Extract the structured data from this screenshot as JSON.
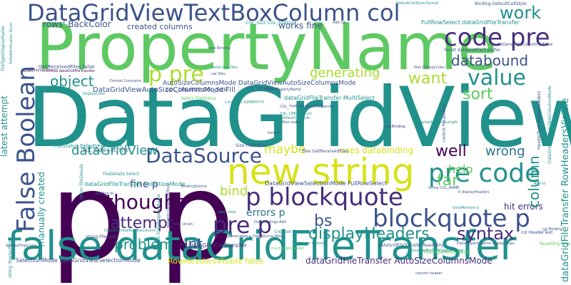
{
  "palette": {
    "purple": "#440154",
    "violet": "#472d7b",
    "indigo": "#3b528b",
    "blue": "#2c728e",
    "teal": "#21918c",
    "sea": "#28ae80",
    "green": "#5ec962",
    "lime": "#addc30",
    "yellow": "#d7e219"
  },
  "words": [
    {
      "text": "DataGridView",
      "color": "teal"
    },
    {
      "text": "PropertyName",
      "color": "green"
    },
    {
      "text": "p p",
      "color": "purple"
    },
    {
      "text": "false dataGridFileTransfer",
      "color": "teal"
    },
    {
      "text": "DataGridViewTextBoxColumn col",
      "color": "indigo"
    },
    {
      "text": "new string",
      "color": "yellow"
    },
    {
      "text": "p blockquote",
      "color": "violet"
    },
    {
      "text": "blockquote p",
      "color": "indigo"
    },
    {
      "text": "pre code",
      "color": "teal"
    },
    {
      "text": "code pre",
      "color": "violet"
    },
    {
      "text": "False Boolean",
      "color": "indigo"
    },
    {
      "text": "pre p",
      "color": "violet"
    },
    {
      "text": "p pre",
      "color": "lime"
    },
    {
      "text": "DataSource",
      "color": "indigo"
    },
    {
      "text": "thought",
      "color": "purple"
    },
    {
      "text": "attempt",
      "color": "violet"
    },
    {
      "text": "value",
      "color": "teal"
    },
    {
      "text": "databound",
      "color": "indigo"
    },
    {
      "text": "work",
      "color": "teal"
    },
    {
      "text": "want",
      "color": "lime"
    },
    {
      "text": "displayHeaders",
      "color": "teal"
    },
    {
      "text": "generating",
      "color": "lime"
    },
    {
      "text": "syntax",
      "color": "violet"
    },
    {
      "text": "well",
      "color": "purple"
    },
    {
      "text": "problem",
      "color": "teal"
    },
    {
      "text": "bs",
      "color": "indigo"
    },
    {
      "text": "object",
      "color": "teal"
    },
    {
      "text": "sort",
      "color": "green"
    },
    {
      "text": "column",
      "color": "teal"
    },
    {
      "text": "wrong",
      "color": "blue"
    },
    {
      "text": "far",
      "color": "green"
    },
    {
      "text": "maybe",
      "color": "yellow"
    },
    {
      "text": "int",
      "color": "indigo"
    },
    {
      "text": "bind",
      "color": "lime"
    },
    {
      "text": "help",
      "color": "green"
    },
    {
      "text": "errors p",
      "color": "blue"
    },
    {
      "text": "hit errors",
      "color": "violet"
    },
    {
      "text": "fine p",
      "color": "indigo"
    },
    {
      "text": "latest attempt",
      "color": "teal"
    },
    {
      "text": "manually created",
      "color": "teal"
    },
    {
      "text": "rows' BackColor",
      "color": "indigo"
    },
    {
      "text": "created columns",
      "color": "indigo"
    },
    {
      "text": "works fine",
      "color": "indigo"
    },
    {
      "text": "uses databinding",
      "color": "yellow"
    },
    {
      "text": "dataGridFileTransfer RowHeadersVisible",
      "color": "teal"
    },
    {
      "text": "dataGridFileTransfer AutoSizeColumnsMode",
      "color": "violet"
    },
    {
      "text": "RowHeadersVisible false",
      "color": "yellow"
    },
    {
      "text": "DataGridViewAutoSizeColumnsMode Fill",
      "color": "indigo"
    },
    {
      "text": "AutoSizeColumnsMode DataGridViewAutoSizeColumnsMode",
      "color": "indigo"
    },
    {
      "text": "DataGridViewSelectionMode FullRowSelect",
      "color": "indigo"
    },
    {
      "text": "COL_CREATED COL_SIZE",
      "color": "indigo"
    },
    {
      "text": "dataGridFileTransfer SelectionMode",
      "color": "teal"
    },
    {
      "text": "SelectionMode DataGridViewSelectionMode",
      "color": "indigo"
    },
    {
      "text": "Fill dataGridFileTransfer",
      "color": "violet"
    },
    {
      "text": "dataGridFileTransfer MultiSelect",
      "color": "teal"
    },
    {
      "text": "FullRowSelect dataGridFileTransfer",
      "color": "teal"
    },
    {
      "text": "COL_SIZE COL_STATUS",
      "color": "teal"
    },
    {
      "text": "GetReceivedFiles false",
      "color": "indigo"
    },
    {
      "text": "MultiSelect false",
      "color": "green"
    },
    {
      "text": "FileStatus FailedVerification",
      "color": "teal"
    },
    {
      "text": "COL_NAME COL_TYPE",
      "color": "indigo"
    },
    {
      "text": "Size FileStatus",
      "color": "indigo"
    },
    {
      "text": "files GetReceivedFiles",
      "color": "indigo"
    },
    {
      "text": "FileDetails Select",
      "color": "teal"
    },
    {
      "text": "string Filename",
      "color": "indigo"
    },
    {
      "text": "DataGridViewAutoSizeColumnsMode",
      "color": "teal"
    },
    {
      "text": "Union FileDetails",
      "color": "teal"
    },
    {
      "text": "Select FileStatus",
      "color": "green"
    },
    {
      "text": "name PropertyName",
      "color": "indigo"
    },
    {
      "text": "COL_CREATED col",
      "color": "indigo"
    },
    {
      "text": "col DataPropertyName",
      "color": "teal"
    },
    {
      "text": "dataGridFileTransfer ReadOnly",
      "color": "indigo"
    },
    {
      "text": "ReadOnly true",
      "color": "green"
    },
    {
      "text": "col HeaderText",
      "color": "indigo"
    },
    {
      "text": "HeaderText displayHeaders",
      "color": "indigo"
    },
    {
      "text": "DataBindings Add",
      "color": "indigo"
    },
    {
      "text": "Created Size",
      "color": "teal"
    },
    {
      "text": "col Binding",
      "color": "indigo"
    },
    {
      "text": "Binding DefaultCellStyle",
      "color": "indigo"
    },
    {
      "text": "DefaultCellStyle Format",
      "color": "teal"
    },
    {
      "text": "AutoGenerateColumns false",
      "color": "indigo"
    },
    {
      "text": "ToList dataGridFileTransfer",
      "color": "indigo"
    },
    {
      "text": "Add col",
      "color": "indigo"
    },
    {
      "text": "new Binding",
      "color": "indigo"
    },
    {
      "text": "BackColor files",
      "color": "teal"
    },
    {
      "text": "var files",
      "color": "indigo"
    },
    {
      "text": "Format Constants",
      "color": "indigo"
    },
    {
      "text": "DDMMYYYYHHMMSS dataGridFileTransfer",
      "color": "purple"
    },
    {
      "text": "FailedVerification ToList",
      "color": "teal"
    },
    {
      "text": "FileTypeDisplayName",
      "color": "teal"
    },
    {
      "text": "Filename FileTypeDisplayName",
      "color": "teal"
    },
    {
      "text": "files DisplayColor",
      "color": "indigo"
    },
    {
      "text": "string COL_NAME",
      "color": "indigo"
    },
    {
      "text": "COL_TYPE dataGridFileTransfer",
      "color": "indigo"
    },
    {
      "text": "col DefaultCellStyle",
      "color": "teal"
    },
    {
      "text": "COL_CREATED col",
      "color": "teal"
    },
    {
      "text": "files code",
      "color": "indigo"
    },
    {
      "text": "form X",
      "color": "indigo"
    },
    {
      "text": "control Parameter",
      "color": "indigo"
    },
    {
      "text": "displayHeaders Length",
      "color": "teal"
    },
    {
      "text": "seen used",
      "color": "teal"
    },
    {
      "text": "target control",
      "color": "teal"
    },
    {
      "text": "much appreciated",
      "color": "green"
    },
    {
      "text": "appreciated p",
      "color": "indigo"
    },
    {
      "text": "DataSource files",
      "color": "indigo"
    },
    {
      "text": "property DefaultCellStyle",
      "color": "indigo"
    },
    {
      "text": "string displayProps",
      "color": "teal"
    },
    {
      "text": "DataGridViewTextBoxColumn",
      "color": "teal"
    },
    {
      "text": "false Union",
      "color": "indigo"
    },
    {
      "text": "Binding bi",
      "color": "indigo"
    },
    {
      "text": "displayProps new",
      "color": "indigo"
    },
    {
      "text": "DataMember p",
      "color": "teal"
    },
    {
      "text": "lt displayHeaders",
      "color": "indigo"
    },
    {
      "text": "DisplayColor",
      "color": "teal"
    },
    {
      "text": "Constants DDMMYYYY",
      "color": "teal"
    },
    {
      "text": "BindingSource",
      "color": "indigo"
    },
    {
      "text": "column header",
      "color": "indigo"
    },
    {
      "text": "Add to",
      "color": "teal"
    },
    {
      "text": "col Binding",
      "color": "violet"
    },
    {
      "text": "DataPropertyName displayProps",
      "color": "indigo"
    },
    {
      "text": "dataGridView",
      "color": "teal"
    },
    {
      "text": "e",
      "color": "purple"
    },
    {
      "text": "Ex",
      "color": "indigo"
    },
    {
      "text": "Column",
      "color": "teal"
    }
  ]
}
